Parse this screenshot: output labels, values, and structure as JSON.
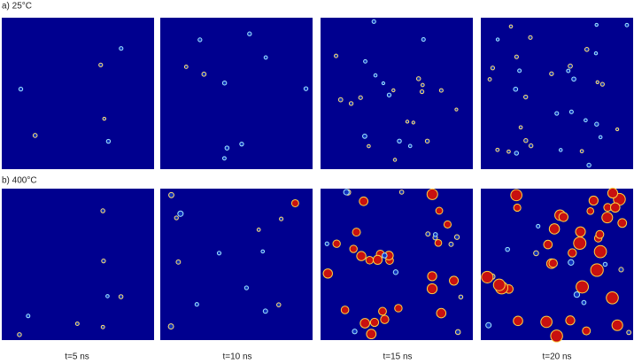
{
  "rows": [
    {
      "label": "a) 25°C"
    },
    {
      "label": "b) 400°C"
    }
  ],
  "columns": [
    "t=5 ns",
    "t=10 ns",
    "t=15 ns",
    "t=20 ns"
  ]
}
